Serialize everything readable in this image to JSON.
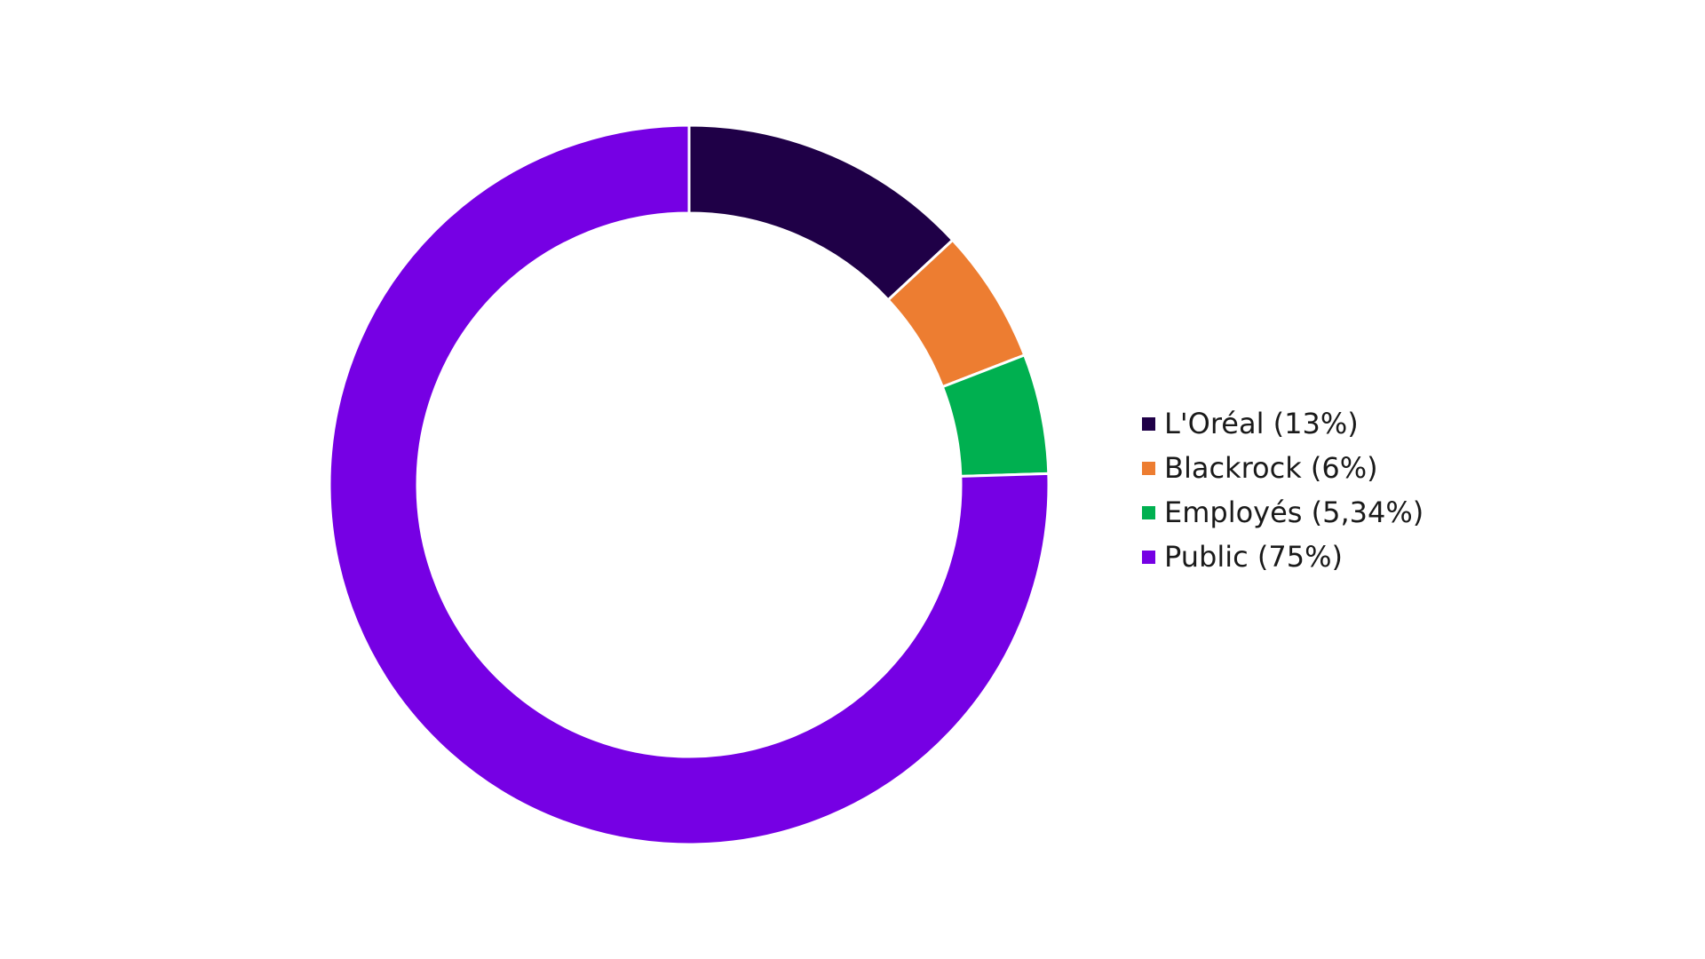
{
  "chart_data": {
    "type": "pie",
    "variant": "donut",
    "title": "",
    "categories": [
      "L'Oréal",
      "Blackrock",
      "Employés",
      "Public"
    ],
    "values": [
      13,
      6,
      5.34,
      75
    ],
    "colors": [
      "#1f0047",
      "#ed7d31",
      "#00b050",
      "#7600e4"
    ],
    "legend_position": "right",
    "start_angle_deg": 0,
    "direction": "clockwise"
  },
  "legend": {
    "items": [
      {
        "label": "L'Oréal (13%)",
        "color": "#1f0047"
      },
      {
        "label": "Blackrock (6%)",
        "color": "#ed7d31"
      },
      {
        "label": "Employés (5,34%)",
        "color": "#00b050"
      },
      {
        "label": "Public (75%)",
        "color": "#7600e4"
      }
    ]
  }
}
